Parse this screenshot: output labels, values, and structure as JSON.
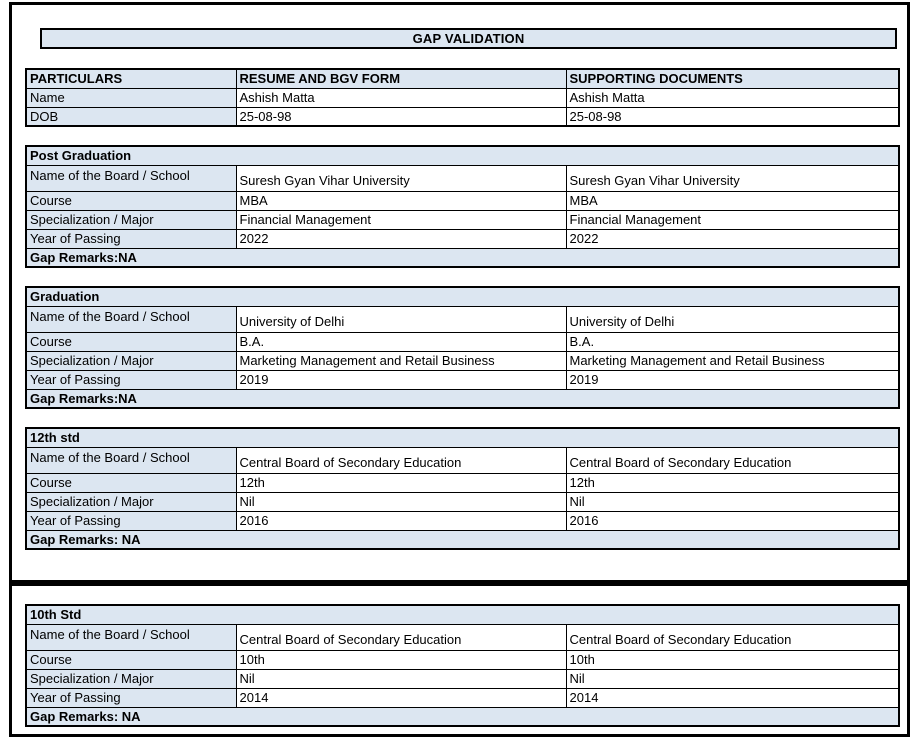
{
  "title": "GAP VALIDATION",
  "colors": {
    "header_bg": "#dce6f1",
    "border": "#000000",
    "text": "#000000"
  },
  "info_table": {
    "headers": [
      "PARTICULARS",
      "RESUME AND BGV FORM",
      "SUPPORTING DOCUMENTS"
    ],
    "rows": [
      {
        "label": "Name",
        "resume": "Ashish Matta",
        "supporting": "Ashish Matta"
      },
      {
        "label": "DOB",
        "resume": "25-08-98",
        "supporting": "25-08-98"
      }
    ]
  },
  "sections": [
    {
      "title": "Post Graduation",
      "rows": [
        {
          "label": "Name of the Board / School",
          "resume": "Suresh Gyan Vihar University",
          "supporting": "Suresh Gyan Vihar University"
        },
        {
          "label": "Course",
          "resume": "MBA",
          "supporting": "MBA"
        },
        {
          "label": "Specialization / Major",
          "resume": "Financial Management",
          "supporting": "Financial Management"
        },
        {
          "label": "Year of Passing",
          "resume": "2022",
          "supporting": "2022"
        }
      ],
      "gap_remarks": "Gap Remarks:NA"
    },
    {
      "title": "Graduation",
      "rows": [
        {
          "label": "Name of the Board / School",
          "resume": "University of Delhi",
          "supporting": "University of Delhi"
        },
        {
          "label": "Course",
          "resume": "B.A.",
          "supporting": "B.A."
        },
        {
          "label": "Specialization / Major",
          "resume": "Marketing Management and Retail Business",
          "supporting": "Marketing Management and Retail Business"
        },
        {
          "label": "Year of Passing",
          "resume": "2019",
          "supporting": "2019"
        }
      ],
      "gap_remarks": "Gap Remarks:NA"
    },
    {
      "title": "12th std",
      "rows": [
        {
          "label": "Name of the Board / School",
          "resume": "Central Board of Secondary Education",
          "supporting": "Central Board of Secondary Education"
        },
        {
          "label": "Course",
          "resume": "12th",
          "supporting": "12th"
        },
        {
          "label": "Specialization / Major",
          "resume": "Nil",
          "supporting": "Nil"
        },
        {
          "label": "Year of Passing",
          "resume": "2016",
          "supporting": "2016"
        }
      ],
      "gap_remarks": "Gap Remarks: NA"
    },
    {
      "title": "10th Std",
      "rows": [
        {
          "label": "Name of the Board / School",
          "resume": "Central Board of Secondary Education",
          "supporting": "Central Board of Secondary Education"
        },
        {
          "label": "Course",
          "resume": "10th",
          "supporting": "10th"
        },
        {
          "label": "Specialization / Major",
          "resume": "Nil",
          "supporting": "Nil"
        },
        {
          "label": "Year of Passing",
          "resume": "2014",
          "supporting": "2014"
        }
      ],
      "gap_remarks": "Gap Remarks: NA"
    }
  ]
}
